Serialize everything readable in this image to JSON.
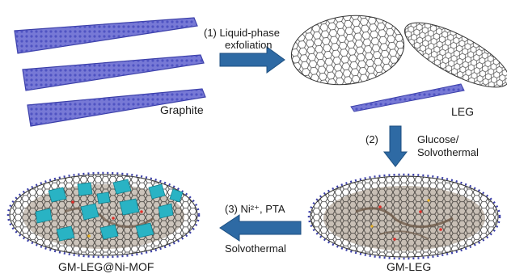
{
  "labels": {
    "graphite": "Graphite",
    "leg": "LEG",
    "gm_leg": "GM-LEG",
    "gm_leg_ni_mof": "GM-LEG@Ni-MOF"
  },
  "steps": {
    "step1": {
      "line1": "(1) Liquid-phase",
      "line2": "exfoliation"
    },
    "step2": {
      "num": "(2)",
      "line1": "Glucose/",
      "line2": "Solvothermal"
    },
    "step3": {
      "line1": "(3) Ni²⁺, PTA",
      "line2": "Solvothermal"
    }
  },
  "colors": {
    "arrow": "#2e6aa4",
    "graphite_sheet": "#6a6ccf",
    "atom": "#3b3fa8",
    "lattice_line": "#555555",
    "carbon_coating": "#9a8a78",
    "mof_crystal": "#29b3c4"
  }
}
